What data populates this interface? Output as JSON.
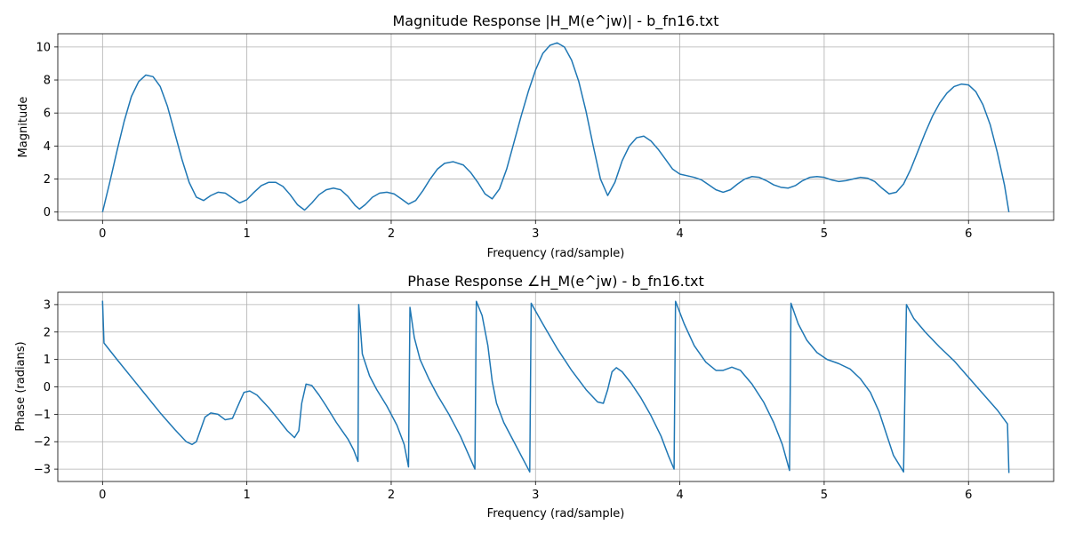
{
  "chart_data": [
    {
      "type": "line",
      "title": "Magnitude Response |H_M(e^jw)| - b_fn16.txt",
      "xlabel": "Frequency (rad/sample)",
      "ylabel": "Magnitude",
      "xlim": [
        -0.31,
        6.59
      ],
      "ylim": [
        -0.5,
        10.8
      ],
      "xticks": [
        0,
        1,
        2,
        3,
        4,
        5,
        6
      ],
      "xtick_labels": [
        "0",
        "1",
        "2",
        "3",
        "4",
        "5",
        "6"
      ],
      "yticks": [
        0,
        2,
        4,
        6,
        8,
        10
      ],
      "ytick_labels": [
        "0",
        "2",
        "4",
        "6",
        "8",
        "10"
      ],
      "grid": true,
      "series": [
        {
          "color": "#1f77b4",
          "points": [
            [
              0.0,
              0.0
            ],
            [
              0.05,
              1.8
            ],
            [
              0.1,
              3.7
            ],
            [
              0.15,
              5.5
            ],
            [
              0.2,
              7.0
            ],
            [
              0.25,
              7.9
            ],
            [
              0.3,
              8.3
            ],
            [
              0.35,
              8.2
            ],
            [
              0.4,
              7.6
            ],
            [
              0.45,
              6.4
            ],
            [
              0.5,
              4.8
            ],
            [
              0.55,
              3.2
            ],
            [
              0.6,
              1.8
            ],
            [
              0.65,
              0.9
            ],
            [
              0.7,
              0.7
            ],
            [
              0.75,
              1.0
            ],
            [
              0.8,
              1.2
            ],
            [
              0.85,
              1.15
            ],
            [
              0.9,
              0.85
            ],
            [
              0.95,
              0.55
            ],
            [
              1.0,
              0.75
            ],
            [
              1.05,
              1.2
            ],
            [
              1.1,
              1.6
            ],
            [
              1.15,
              1.8
            ],
            [
              1.2,
              1.8
            ],
            [
              1.25,
              1.55
            ],
            [
              1.3,
              1.05
            ],
            [
              1.35,
              0.45
            ],
            [
              1.4,
              0.12
            ],
            [
              1.45,
              0.55
            ],
            [
              1.5,
              1.05
            ],
            [
              1.55,
              1.35
            ],
            [
              1.6,
              1.45
            ],
            [
              1.65,
              1.35
            ],
            [
              1.7,
              0.95
            ],
            [
              1.75,
              0.4
            ],
            [
              1.78,
              0.18
            ],
            [
              1.82,
              0.45
            ],
            [
              1.87,
              0.9
            ],
            [
              1.92,
              1.15
            ],
            [
              1.97,
              1.2
            ],
            [
              2.02,
              1.1
            ],
            [
              2.07,
              0.8
            ],
            [
              2.12,
              0.48
            ],
            [
              2.17,
              0.7
            ],
            [
              2.22,
              1.3
            ],
            [
              2.27,
              2.0
            ],
            [
              2.32,
              2.6
            ],
            [
              2.37,
              2.95
            ],
            [
              2.43,
              3.05
            ],
            [
              2.5,
              2.85
            ],
            [
              2.55,
              2.4
            ],
            [
              2.6,
              1.8
            ],
            [
              2.65,
              1.1
            ],
            [
              2.7,
              0.8
            ],
            [
              2.75,
              1.4
            ],
            [
              2.8,
              2.6
            ],
            [
              2.85,
              4.2
            ],
            [
              2.9,
              5.8
            ],
            [
              2.95,
              7.3
            ],
            [
              3.0,
              8.6
            ],
            [
              3.05,
              9.6
            ],
            [
              3.1,
              10.1
            ],
            [
              3.15,
              10.25
            ],
            [
              3.2,
              10.0
            ],
            [
              3.25,
              9.2
            ],
            [
              3.3,
              7.9
            ],
            [
              3.35,
              6.1
            ],
            [
              3.4,
              4.0
            ],
            [
              3.45,
              2.0
            ],
            [
              3.5,
              1.0
            ],
            [
              3.55,
              1.8
            ],
            [
              3.6,
              3.1
            ],
            [
              3.65,
              4.0
            ],
            [
              3.7,
              4.5
            ],
            [
              3.75,
              4.6
            ],
            [
              3.8,
              4.3
            ],
            [
              3.85,
              3.8
            ],
            [
              3.9,
              3.2
            ],
            [
              3.95,
              2.6
            ],
            [
              4.0,
              2.3
            ],
            [
              4.05,
              2.2
            ],
            [
              4.1,
              2.1
            ],
            [
              4.15,
              1.95
            ],
            [
              4.2,
              1.65
            ],
            [
              4.25,
              1.35
            ],
            [
              4.3,
              1.2
            ],
            [
              4.35,
              1.35
            ],
            [
              4.4,
              1.7
            ],
            [
              4.45,
              2.0
            ],
            [
              4.5,
              2.15
            ],
            [
              4.55,
              2.1
            ],
            [
              4.6,
              1.9
            ],
            [
              4.65,
              1.65
            ],
            [
              4.7,
              1.5
            ],
            [
              4.75,
              1.45
            ],
            [
              4.8,
              1.6
            ],
            [
              4.85,
              1.9
            ],
            [
              4.9,
              2.1
            ],
            [
              4.95,
              2.15
            ],
            [
              5.0,
              2.1
            ],
            [
              5.05,
              1.95
            ],
            [
              5.1,
              1.85
            ],
            [
              5.15,
              1.9
            ],
            [
              5.2,
              2.0
            ],
            [
              5.25,
              2.1
            ],
            [
              5.3,
              2.05
            ],
            [
              5.35,
              1.85
            ],
            [
              5.4,
              1.45
            ],
            [
              5.45,
              1.1
            ],
            [
              5.5,
              1.2
            ],
            [
              5.55,
              1.7
            ],
            [
              5.6,
              2.6
            ],
            [
              5.65,
              3.7
            ],
            [
              5.7,
              4.8
            ],
            [
              5.75,
              5.8
            ],
            [
              5.8,
              6.6
            ],
            [
              5.85,
              7.2
            ],
            [
              5.9,
              7.6
            ],
            [
              5.95,
              7.75
            ],
            [
              6.0,
              7.7
            ],
            [
              6.05,
              7.3
            ],
            [
              6.1,
              6.5
            ],
            [
              6.15,
              5.3
            ],
            [
              6.2,
              3.6
            ],
            [
              6.25,
              1.6
            ],
            [
              6.28,
              0.0
            ]
          ]
        }
      ]
    },
    {
      "type": "line",
      "title": "Phase Response ∠H_M(e^jw) - b_fn16.txt",
      "xlabel": "Frequency (rad/sample)",
      "ylabel": "Phase (radians)",
      "xlim": [
        -0.31,
        6.59
      ],
      "ylim": [
        -3.45,
        3.45
      ],
      "xticks": [
        0,
        1,
        2,
        3,
        4,
        5,
        6
      ],
      "xtick_labels": [
        "0",
        "1",
        "2",
        "3",
        "4",
        "5",
        "6"
      ],
      "yticks": [
        -3,
        -2,
        -1,
        0,
        1,
        2,
        3
      ],
      "ytick_labels": [
        "−3",
        "−2",
        "−1",
        "0",
        "1",
        "2",
        "3"
      ],
      "grid": true,
      "series": [
        {
          "color": "#1f77b4",
          "points": [
            [
              0.0,
              3.14
            ],
            [
              0.01,
              1.6
            ],
            [
              0.1,
              1.0
            ],
            [
              0.2,
              0.35
            ],
            [
              0.3,
              -0.3
            ],
            [
              0.4,
              -0.95
            ],
            [
              0.5,
              -1.55
            ],
            [
              0.58,
              -2.0
            ],
            [
              0.62,
              -2.1
            ],
            [
              0.65,
              -2.0
            ],
            [
              0.68,
              -1.55
            ],
            [
              0.71,
              -1.1
            ],
            [
              0.75,
              -0.95
            ],
            [
              0.8,
              -1.0
            ],
            [
              0.85,
              -1.2
            ],
            [
              0.9,
              -1.15
            ],
            [
              0.95,
              -0.55
            ],
            [
              0.98,
              -0.2
            ],
            [
              1.02,
              -0.15
            ],
            [
              1.07,
              -0.3
            ],
            [
              1.15,
              -0.75
            ],
            [
              1.22,
              -1.2
            ],
            [
              1.28,
              -1.6
            ],
            [
              1.33,
              -1.85
            ],
            [
              1.36,
              -1.6
            ],
            [
              1.38,
              -0.6
            ],
            [
              1.41,
              0.1
            ],
            [
              1.45,
              0.05
            ],
            [
              1.5,
              -0.3
            ],
            [
              1.55,
              -0.7
            ],
            [
              1.62,
              -1.3
            ],
            [
              1.7,
              -1.9
            ],
            [
              1.74,
              -2.3
            ],
            [
              1.77,
              -2.72
            ],
            [
              1.775,
              3.0
            ],
            [
              1.8,
              1.2
            ],
            [
              1.85,
              0.4
            ],
            [
              1.9,
              -0.1
            ],
            [
              1.97,
              -0.7
            ],
            [
              2.04,
              -1.4
            ],
            [
              2.09,
              -2.1
            ],
            [
              2.12,
              -2.92
            ],
            [
              2.13,
              2.9
            ],
            [
              2.16,
              1.8
            ],
            [
              2.2,
              1.0
            ],
            [
              2.26,
              0.3
            ],
            [
              2.32,
              -0.3
            ],
            [
              2.4,
              -1.0
            ],
            [
              2.48,
              -1.8
            ],
            [
              2.53,
              -2.4
            ],
            [
              2.58,
              -3.0
            ],
            [
              2.59,
              3.12
            ],
            [
              2.63,
              2.6
            ],
            [
              2.67,
              1.5
            ],
            [
              2.7,
              0.2
            ],
            [
              2.73,
              -0.6
            ],
            [
              2.78,
              -1.3
            ],
            [
              2.84,
              -1.9
            ],
            [
              2.9,
              -2.5
            ],
            [
              2.96,
              -3.1
            ],
            [
              2.97,
              3.05
            ],
            [
              3.05,
              2.3
            ],
            [
              3.15,
              1.4
            ],
            [
              3.25,
              0.6
            ],
            [
              3.35,
              -0.1
            ],
            [
              3.43,
              -0.55
            ],
            [
              3.47,
              -0.6
            ],
            [
              3.5,
              -0.1
            ],
            [
              3.53,
              0.55
            ],
            [
              3.56,
              0.7
            ],
            [
              3.6,
              0.55
            ],
            [
              3.66,
              0.15
            ],
            [
              3.73,
              -0.4
            ],
            [
              3.8,
              -1.05
            ],
            [
              3.87,
              -1.8
            ],
            [
              3.92,
              -2.5
            ],
            [
              3.96,
              -3.0
            ],
            [
              3.97,
              3.12
            ],
            [
              4.03,
              2.3
            ],
            [
              4.1,
              1.5
            ],
            [
              4.18,
              0.9
            ],
            [
              4.25,
              0.6
            ],
            [
              4.3,
              0.6
            ],
            [
              4.36,
              0.72
            ],
            [
              4.42,
              0.6
            ],
            [
              4.5,
              0.1
            ],
            [
              4.58,
              -0.55
            ],
            [
              4.65,
              -1.3
            ],
            [
              4.71,
              -2.1
            ],
            [
              4.76,
              -3.05
            ],
            [
              4.77,
              3.05
            ],
            [
              4.82,
              2.3
            ],
            [
              4.88,
              1.7
            ],
            [
              4.95,
              1.25
            ],
            [
              5.02,
              1.0
            ],
            [
              5.1,
              0.85
            ],
            [
              5.18,
              0.65
            ],
            [
              5.25,
              0.3
            ],
            [
              5.32,
              -0.2
            ],
            [
              5.38,
              -0.9
            ],
            [
              5.43,
              -1.7
            ],
            [
              5.48,
              -2.5
            ],
            [
              5.55,
              -3.1
            ],
            [
              5.57,
              3.0
            ],
            [
              5.62,
              2.5
            ],
            [
              5.7,
              2.0
            ],
            [
              5.8,
              1.45
            ],
            [
              5.9,
              0.95
            ],
            [
              6.0,
              0.35
            ],
            [
              6.1,
              -0.25
            ],
            [
              6.2,
              -0.85
            ],
            [
              6.27,
              -1.35
            ],
            [
              6.28,
              -3.14
            ]
          ]
        }
      ]
    }
  ]
}
